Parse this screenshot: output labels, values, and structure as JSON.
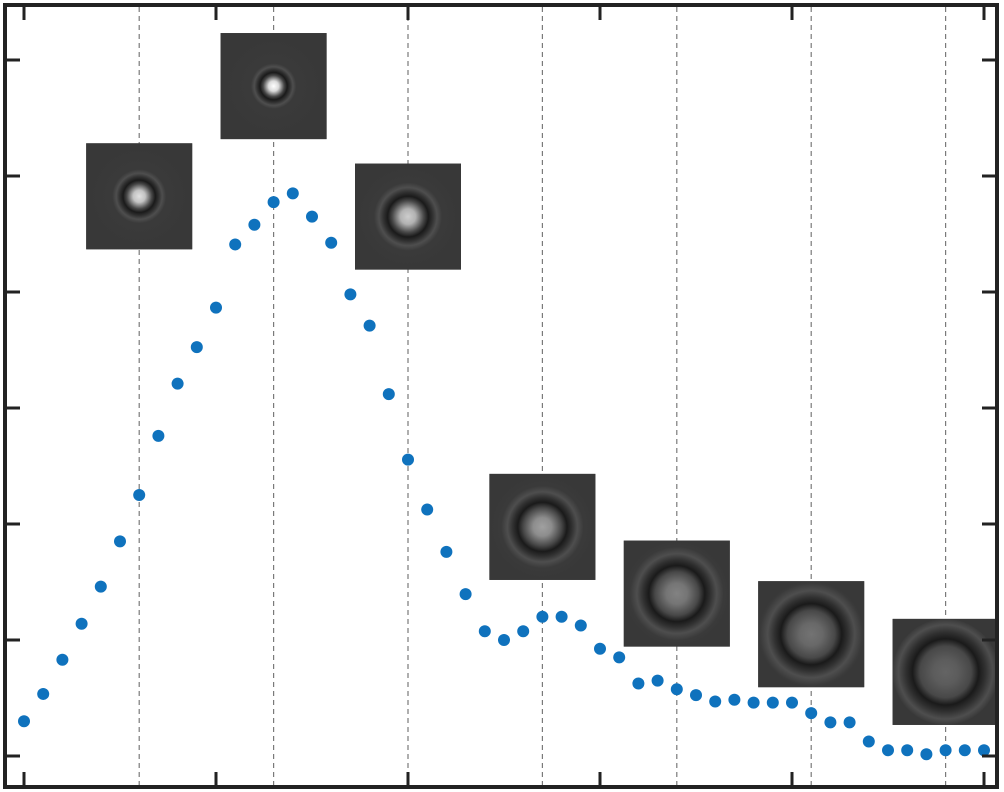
{
  "chart_data": {
    "type": "scatter",
    "title": "",
    "xlabel": "",
    "ylabel": "",
    "xlim": [
      0,
      50
    ],
    "ylim": [
      0,
      1
    ],
    "grid": "x-dashed",
    "marker_color": "#0f72bd",
    "x": [
      0,
      1,
      2,
      3,
      4,
      5,
      6,
      7,
      8,
      9,
      10,
      11,
      12,
      13,
      14,
      15,
      16,
      17,
      18,
      19,
      20,
      21,
      22,
      23,
      24,
      25,
      26,
      27,
      28,
      29,
      30,
      31,
      32,
      33,
      34,
      35,
      36,
      37,
      38,
      39,
      40,
      41,
      42,
      43,
      44,
      45,
      46,
      47,
      48,
      49,
      50
    ],
    "y": [
      0.06,
      0.107,
      0.166,
      0.228,
      0.292,
      0.37,
      0.45,
      0.552,
      0.642,
      0.705,
      0.773,
      0.882,
      0.916,
      0.955,
      0.97,
      0.93,
      0.885,
      0.796,
      0.742,
      0.624,
      0.511,
      0.425,
      0.352,
      0.279,
      0.215,
      0.2,
      0.215,
      0.24,
      0.24,
      0.225,
      0.185,
      0.17,
      0.125,
      0.13,
      0.115,
      0.105,
      0.094,
      0.097,
      0.092,
      0.092,
      0.092,
      0.074,
      0.058,
      0.058,
      0.025,
      0.01,
      0.01,
      0.003,
      0.01,
      0.01,
      0.01
    ],
    "inset_images": [
      {
        "name": "psf-inset-1",
        "x": 6,
        "y": 0.965,
        "core_level": 225,
        "ring_radius_frac": 0.38
      },
      {
        "name": "psf-inset-2",
        "x": 13,
        "y": 1.155,
        "core_level": 255,
        "ring_radius_frac": 0.32
      },
      {
        "name": "psf-inset-3",
        "x": 20,
        "y": 0.93,
        "core_level": 205,
        "ring_radius_frac": 0.48
      },
      {
        "name": "psf-inset-4",
        "x": 27,
        "y": 0.395,
        "core_level": 160,
        "ring_radius_frac": 0.58
      },
      {
        "name": "psf-inset-5",
        "x": 34,
        "y": 0.28,
        "core_level": 130,
        "ring_radius_frac": 0.66
      },
      {
        "name": "psf-inset-6",
        "x": 41,
        "y": 0.21,
        "core_level": 115,
        "ring_radius_frac": 0.72
      },
      {
        "name": "psf-inset-7",
        "x": 48,
        "y": 0.145,
        "core_level": 100,
        "ring_radius_frac": 0.78
      }
    ]
  }
}
